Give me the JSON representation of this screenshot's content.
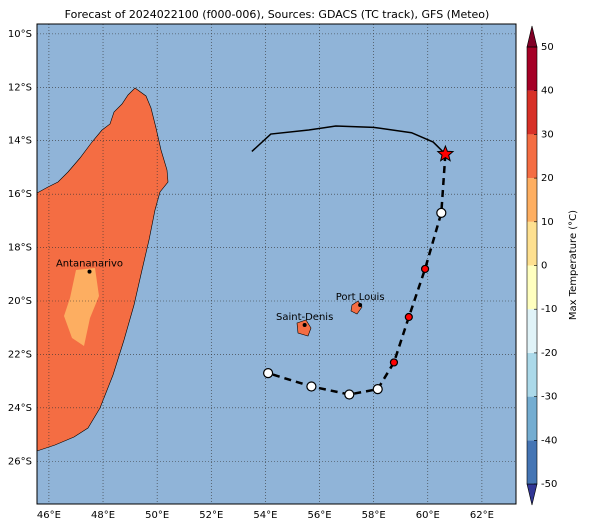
{
  "map": {
    "title": "Forecast of 2024022100 (f000-006), Sources: GDACS (TC track), GFS (Meteo)",
    "lon_range": [
      45.56,
      63.26
    ],
    "lat_range": [
      -9.63,
      -27.6
    ],
    "lon_ticks": [
      {
        "value": 46,
        "label": "46°E"
      },
      {
        "value": 48,
        "label": "48°E"
      },
      {
        "value": 50,
        "label": "50°E"
      },
      {
        "value": 52,
        "label": "52°E"
      },
      {
        "value": 54,
        "label": "54°E"
      },
      {
        "value": 56,
        "label": "56°E"
      },
      {
        "value": 58,
        "label": "58°E"
      },
      {
        "value": 60,
        "label": "60°E"
      },
      {
        "value": 62,
        "label": "62°E"
      }
    ],
    "lat_ticks": [
      {
        "value": -10,
        "label": "10°S"
      },
      {
        "value": -12,
        "label": "12°S"
      },
      {
        "value": -14,
        "label": "14°S"
      },
      {
        "value": -16,
        "label": "16°S"
      },
      {
        "value": -18,
        "label": "18°S"
      },
      {
        "value": -20,
        "label": "20°S"
      },
      {
        "value": -22,
        "label": "22°S"
      },
      {
        "value": -24,
        "label": "24°S"
      },
      {
        "value": -26,
        "label": "26°S"
      }
    ],
    "cities": [
      {
        "name": "Antananarivo",
        "lon": 47.5,
        "lat": -18.9
      },
      {
        "name": "Saint-Denis",
        "lon": 55.45,
        "lat": -20.9
      },
      {
        "name": "Port Louis",
        "lon": 57.5,
        "lat": -20.15
      }
    ],
    "track": {
      "past": [
        {
          "lon": 53.5,
          "lat": -14.4
        },
        {
          "lon": 54.2,
          "lat": -13.75
        },
        {
          "lon": 55.6,
          "lat": -13.6
        },
        {
          "lon": 56.6,
          "lat": -13.45
        },
        {
          "lon": 58.0,
          "lat": -13.5
        },
        {
          "lon": 59.4,
          "lat": -13.7
        },
        {
          "lon": 60.2,
          "lat": -14.05
        },
        {
          "lon": 60.65,
          "lat": -14.5
        }
      ],
      "points": [
        {
          "lon": 60.65,
          "lat": -14.5,
          "color": "red"
        },
        {
          "lon": 60.5,
          "lat": -16.7,
          "color": "white"
        },
        {
          "lon": 59.9,
          "lat": -18.8,
          "color": "red"
        },
        {
          "lon": 59.3,
          "lat": -20.6,
          "color": "red"
        },
        {
          "lon": 58.75,
          "lat": -22.3,
          "color": "red"
        },
        {
          "lon": 58.15,
          "lat": -23.3,
          "color": "white"
        },
        {
          "lon": 57.1,
          "lat": -23.5,
          "color": "white"
        },
        {
          "lon": 55.7,
          "lat": -23.2,
          "color": "white"
        },
        {
          "lon": 54.1,
          "lat": -22.7,
          "color": "white"
        }
      ]
    },
    "colorbar": {
      "label": "Max Temperature (°C)",
      "range": [
        -50,
        50
      ],
      "ticks": [
        50,
        40,
        30,
        20,
        10,
        0,
        -10,
        -20,
        -30,
        -40,
        -50
      ],
      "colors": [
        "#313695",
        "#4575b4",
        "#74add1",
        "#abd9e9",
        "#e0f3f8",
        "#ffffbf",
        "#fee090",
        "#fdae61",
        "#f46d43",
        "#d73027",
        "#a50026",
        "#800026"
      ]
    }
  }
}
